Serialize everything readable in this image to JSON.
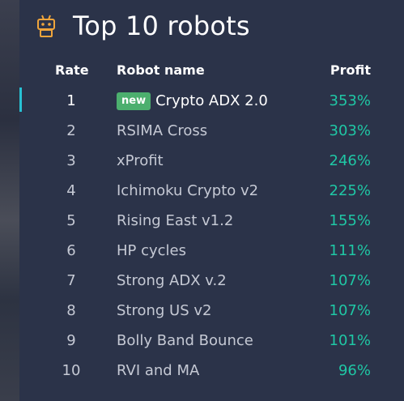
{
  "title": "Top 10 robots",
  "headers": {
    "rate": "Rate",
    "name": "Robot name",
    "profit": "Profit"
  },
  "badge": "new",
  "icon": "robot-icon",
  "colors": {
    "accent": "#1fc7a5",
    "badge": "#4caf6e",
    "icon": "#f0a53b",
    "marker": "#27c1d4"
  },
  "robots": [
    {
      "rate": "1",
      "name": "Crypto ADX 2.0",
      "profit": "353%"
    },
    {
      "rate": "2",
      "name": "RSIMA Cross",
      "profit": "303%"
    },
    {
      "rate": "3",
      "name": "xProfit",
      "profit": "246%"
    },
    {
      "rate": "4",
      "name": "Ichimoku Crypto v2",
      "profit": "225%"
    },
    {
      "rate": "5",
      "name": "Rising East v1.2",
      "profit": "155%"
    },
    {
      "rate": "6",
      "name": "HP cycles",
      "profit": "111%"
    },
    {
      "rate": "7",
      "name": "Strong ADX v.2",
      "profit": "107%"
    },
    {
      "rate": "8",
      "name": "Strong US v2",
      "profit": "107%"
    },
    {
      "rate": "9",
      "name": "Bolly Band Bounce",
      "profit": "101%"
    },
    {
      "rate": "10",
      "name": "RVI and MA",
      "profit": "96%"
    }
  ]
}
